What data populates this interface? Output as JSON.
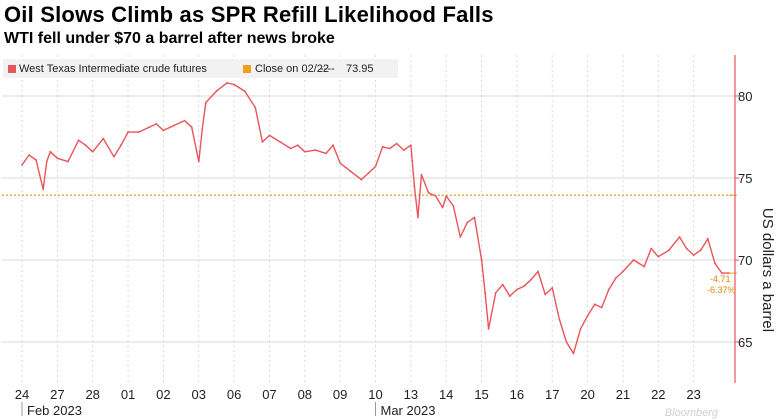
{
  "header": {
    "title": "Oil Slows Climb as SPR Refill Likelihood Falls",
    "subtitle": "WTI fell under $70 a barrel after news broke"
  },
  "colors": {
    "series": "#e8555a",
    "reference": "#f0a020",
    "grid": "#d9d9d9",
    "axis": "#e8555a"
  },
  "chart_data": {
    "type": "line",
    "title": "Oil Slows Climb as SPR Refill Likelihood Falls",
    "subtitle": "WTI fell under $70 a barrel after news broke",
    "xlabel": "",
    "ylabel": "US dollars a barrel",
    "ylim": [
      62.5,
      82.5
    ],
    "yticks": [
      65,
      70,
      75,
      80
    ],
    "grid": true,
    "legend_position": "top-left",
    "categories": [
      "24",
      "27",
      "28",
      "01",
      "02",
      "03",
      "06",
      "07",
      "08",
      "09",
      "10",
      "13",
      "14",
      "15",
      "16",
      "17",
      "20",
      "21",
      "22",
      "23"
    ],
    "month_labels": [
      {
        "label": "Feb 2023",
        "at_index": 0
      },
      {
        "label": "Mar 2023",
        "at_index": 10
      }
    ],
    "series": [
      {
        "name": "West Texas Intermediate crude futures",
        "x": [
          0,
          0.2,
          0.4,
          0.6,
          0.7,
          0.8,
          1.0,
          1.3,
          1.6,
          1.8,
          2.0,
          2.3,
          2.6,
          2.8,
          3.0,
          3.3,
          3.6,
          3.8,
          4.0,
          4.3,
          4.6,
          4.8,
          5.0,
          5.1,
          5.2,
          5.5,
          5.8,
          6.0,
          6.3,
          6.6,
          6.8,
          7.0,
          7.3,
          7.6,
          7.8,
          8.0,
          8.3,
          8.6,
          8.8,
          9.0,
          9.3,
          9.6,
          9.8,
          10.0,
          10.2,
          10.4,
          10.6,
          10.8,
          11.0,
          11.1,
          11.2,
          11.3,
          11.5,
          11.7,
          11.9,
          12.0,
          12.2,
          12.4,
          12.6,
          12.8,
          13.0,
          13.1,
          13.2,
          13.4,
          13.6,
          13.8,
          14.0,
          14.2,
          14.4,
          14.6,
          14.8,
          15.0,
          15.2,
          15.4,
          15.6,
          15.8,
          16.0,
          16.2,
          16.4,
          16.6,
          16.8,
          17.0,
          17.3,
          17.6,
          17.8,
          18.0,
          18.3,
          18.6,
          18.8,
          19.0,
          19.2,
          19.4,
          19.6,
          19.8,
          20.0
        ],
        "values": [
          75.8,
          76.4,
          76.1,
          74.3,
          76.0,
          76.6,
          76.2,
          76.0,
          77.3,
          77.0,
          76.6,
          77.4,
          76.3,
          77.0,
          77.8,
          77.8,
          78.1,
          78.3,
          77.9,
          78.2,
          78.5,
          78.1,
          76.0,
          78.0,
          79.6,
          80.3,
          80.8,
          80.7,
          80.3,
          79.3,
          77.2,
          77.6,
          77.2,
          76.8,
          77.0,
          76.6,
          76.7,
          76.5,
          77.0,
          75.9,
          75.4,
          74.9,
          75.3,
          75.7,
          76.9,
          76.8,
          77.1,
          76.7,
          77.0,
          74.5,
          72.6,
          75.2,
          74.1,
          73.9,
          73.2,
          73.9,
          73.3,
          71.4,
          72.3,
          72.6,
          70.0,
          68.0,
          65.8,
          68.0,
          68.5,
          67.8,
          68.2,
          68.4,
          68.8,
          69.3,
          67.9,
          68.3,
          66.4,
          65.0,
          64.3,
          65.8,
          66.6,
          67.3,
          67.1,
          68.2,
          68.9,
          69.3,
          70.0,
          69.6,
          70.7,
          70.2,
          70.6,
          71.4,
          70.7,
          70.3,
          70.6,
          71.3,
          69.8,
          69.2,
          69.2
        ]
      },
      {
        "name": "Close on 02/22",
        "value_label": "73.95",
        "constant": 73.95
      }
    ],
    "annotations": [
      {
        "text": "-4.71",
        "y": 69.24
      },
      {
        "text": "-6.37%",
        "y": 69.24
      }
    ],
    "watermark": "Bloomberg"
  }
}
